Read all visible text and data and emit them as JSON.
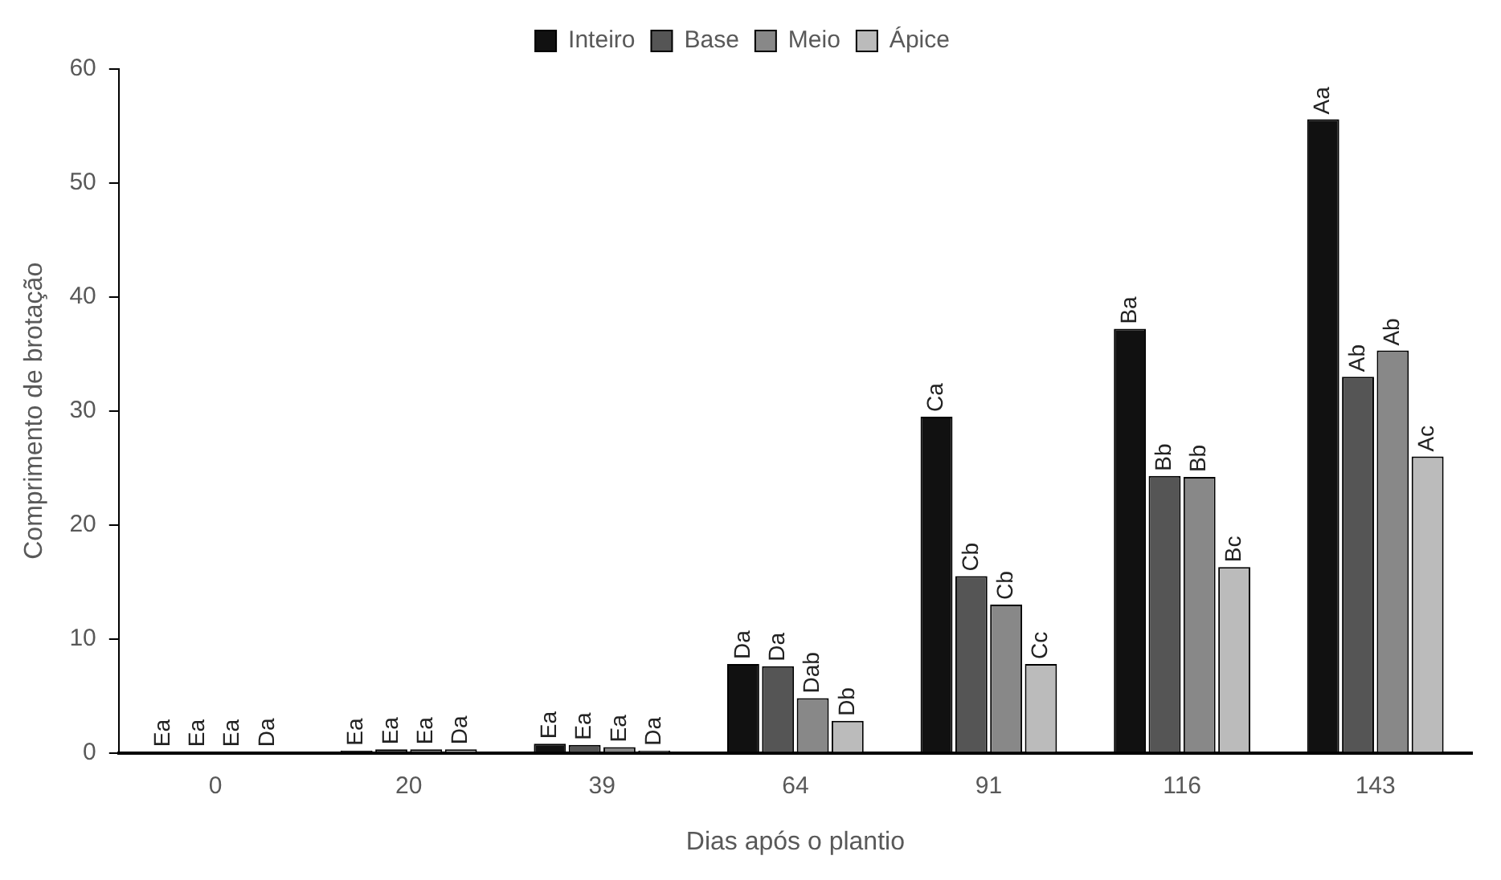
{
  "chart_data": {
    "type": "bar",
    "xlabel": "Dias após o plantio",
    "ylabel": "Comprimento de brotação",
    "categories": [
      "0",
      "20",
      "39",
      "64",
      "91",
      "116",
      "143"
    ],
    "ylim": [
      0,
      60
    ],
    "yticks": [
      0,
      10,
      20,
      30,
      40,
      50,
      60
    ],
    "grid": false,
    "legend": "top",
    "series": [
      {
        "name": "Inteiro",
        "color": "#111111",
        "values": [
          0.1,
          0.2,
          0.8,
          7.8,
          29.5,
          37.2,
          55.6
        ],
        "value_labels": [
          "Ea",
          "Ea",
          "Ea",
          "Da",
          "Ca",
          "Ba",
          "Aa"
        ]
      },
      {
        "name": "Base",
        "color": "#555555",
        "values": [
          0.1,
          0.3,
          0.7,
          7.6,
          15.5,
          24.3,
          33
        ],
        "value_labels": [
          "Ea",
          "Ea",
          "Ea",
          "Da",
          "Cb",
          "Bb",
          "Ab"
        ]
      },
      {
        "name": "Meio",
        "color": "#888888",
        "values": [
          0.1,
          0.3,
          0.5,
          4.8,
          13,
          24.2,
          35.3
        ],
        "value_labels": [
          "Ea",
          "Ea",
          "Ea",
          "Dab",
          "Cb",
          "Bb",
          "Ab"
        ]
      },
      {
        "name": "Ápice",
        "color": "#bbbbbb",
        "values": [
          0.1,
          0.3,
          0.2,
          2.8,
          7.8,
          16.3,
          26
        ],
        "value_labels": [
          "Da",
          "Da",
          "Da",
          "Db",
          "Cc",
          "Bc",
          "Ac"
        ]
      }
    ]
  }
}
